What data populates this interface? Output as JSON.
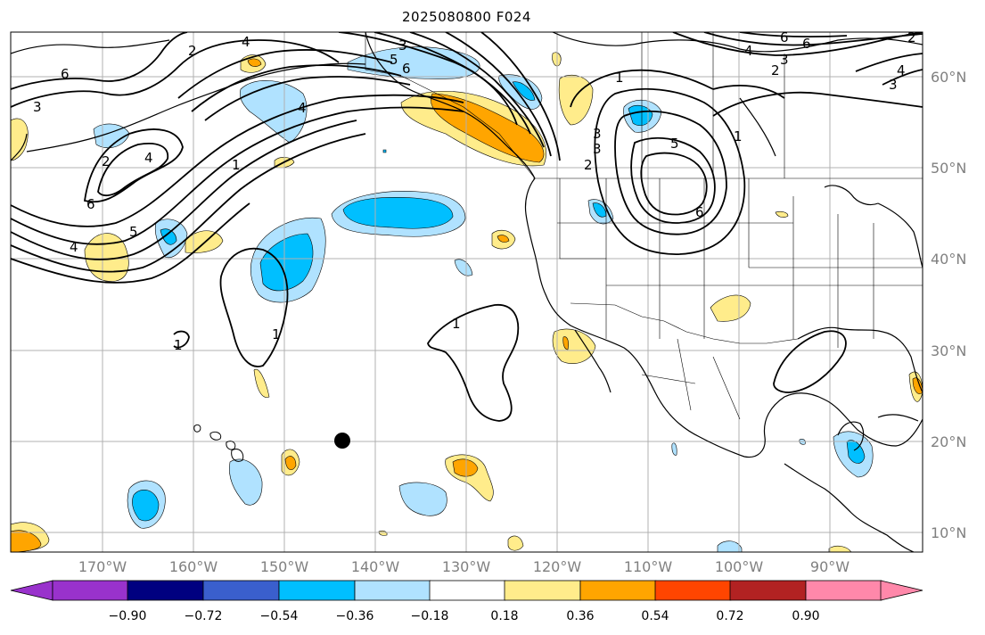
{
  "title": "2025080800 F024",
  "lat_labels": [
    "60°N",
    "50°N",
    "40°N",
    "30°N",
    "20°N",
    "10°N"
  ],
  "lon_labels": [
    "170°W",
    "160°W",
    "150°W",
    "140°W",
    "130°W",
    "120°W",
    "110°W",
    "100°W",
    "90°W"
  ],
  "colorbar": {
    "labels": [
      "−0.90",
      "−0.72",
      "−0.54",
      "−0.36",
      "−0.18",
      "0.18",
      "0.36",
      "0.54",
      "0.72",
      "0.90"
    ],
    "colors": [
      "#9932cc",
      "#000080",
      "#3a5fcd",
      "#00bfff",
      "#b0e2ff",
      "#ffffff",
      "#ffec8b",
      "#ffa500",
      "#ff4500",
      "#b22222",
      "#ff88aa"
    ]
  },
  "contour_labels": [
    "6",
    "3",
    "2",
    "4",
    "4",
    "3",
    "6",
    "5",
    "6",
    "4",
    "3",
    "2",
    "1",
    "4",
    "2",
    "1",
    "3",
    "6",
    "6",
    "4",
    "5",
    "1",
    "1",
    "1",
    "1",
    "5",
    "3",
    "2",
    "6",
    "4",
    "2",
    "3"
  ],
  "colors": {
    "land_line": "#000000",
    "grid": "#b0b0b0",
    "contour": "#000000"
  }
}
